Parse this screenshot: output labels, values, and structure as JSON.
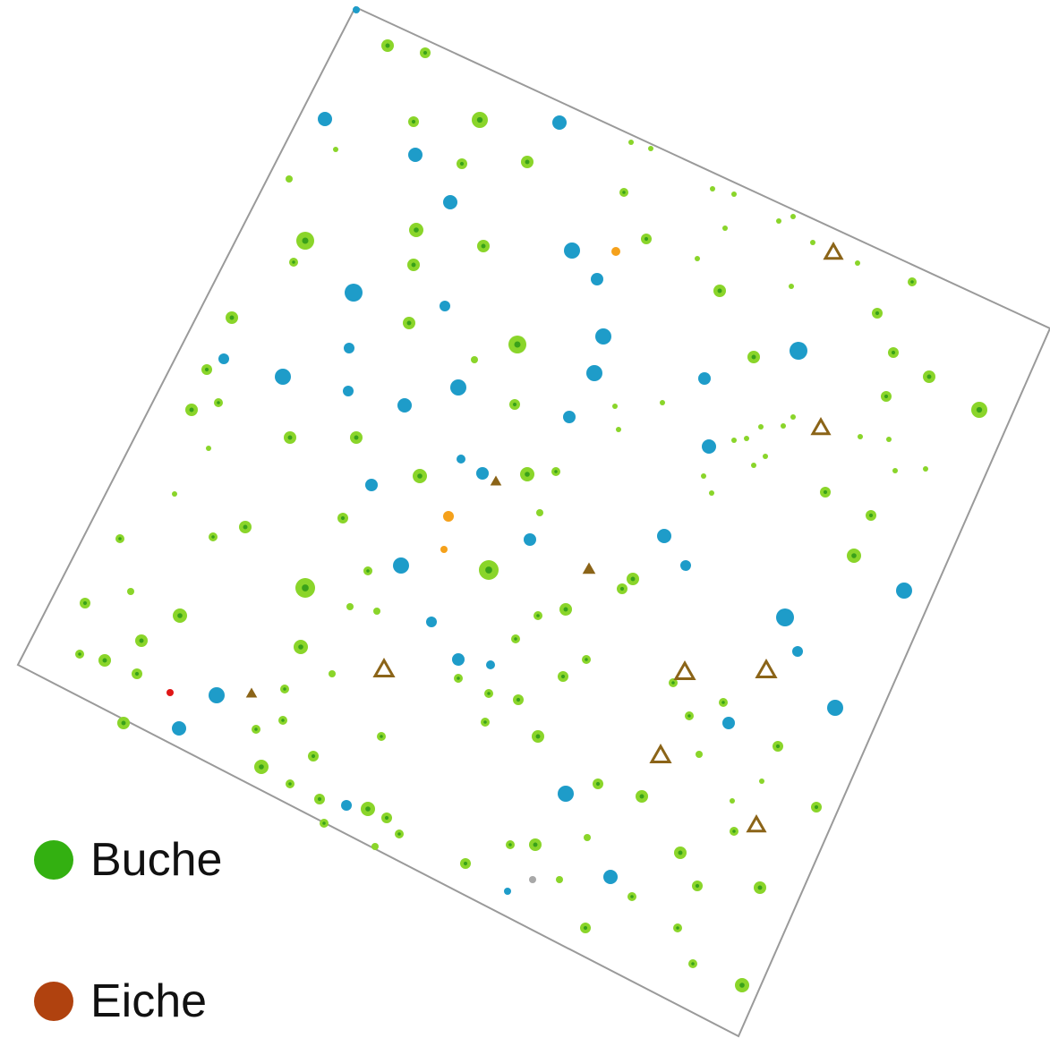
{
  "legend": {
    "buche": {
      "label": "Buche",
      "color": "#33b011"
    },
    "eiche": {
      "label": "Eiche",
      "color": "#b0420f"
    }
  },
  "colors": {
    "plot_border": "#9a9a9a",
    "beech_light": "#8ad52a",
    "beech_dark": "#3aa11a",
    "blue_species": "#1e9cc9",
    "oak_outline": "#8b6418",
    "orange_species": "#f5a11b",
    "red_species": "#e01717",
    "grey_species": "#a8a8a8"
  }
}
